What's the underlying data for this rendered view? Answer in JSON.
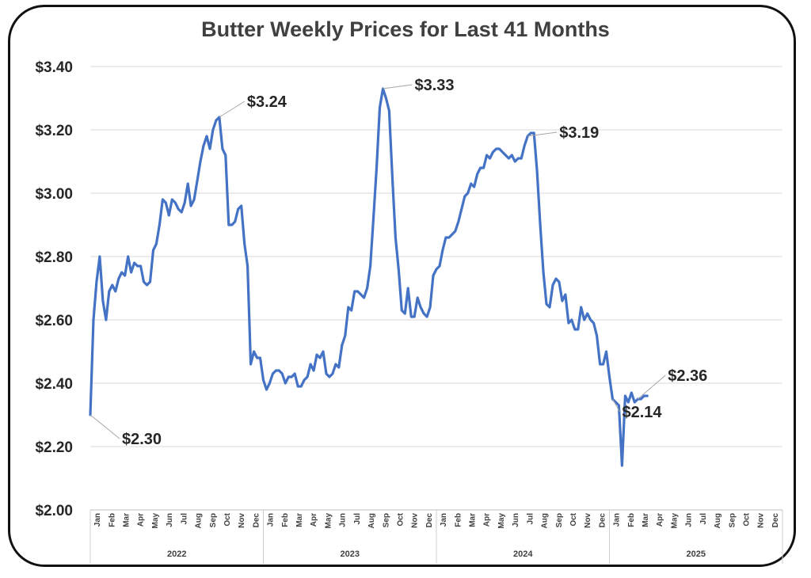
{
  "chart_data": {
    "type": "line",
    "title": "Butter Weekly Prices for Last 41 Months",
    "xlabel": "",
    "ylabel": "",
    "ylim": [
      2.0,
      3.4
    ],
    "yticks": [
      "$2.00",
      "$2.20",
      "$2.40",
      "$2.60",
      "$2.80",
      "$3.00",
      "$3.20",
      "$3.40"
    ],
    "ytick_values": [
      2.0,
      2.2,
      2.4,
      2.6,
      2.8,
      3.0,
      3.2,
      3.4
    ],
    "grid": true,
    "line_color": "#4472C4",
    "years": [
      "2022",
      "2023",
      "2024",
      "2025"
    ],
    "months": [
      "Jan",
      "Feb",
      "Mar",
      "Apr",
      "May",
      "Jun",
      "Jul",
      "Aug",
      "Sep",
      "Oct",
      "Nov",
      "Dec"
    ],
    "months_2025": [
      "Jan",
      "Feb",
      "Mar",
      "Apr",
      "May",
      "Jun",
      "Jul",
      "Aug",
      "Sep",
      "Oct",
      "Nov",
      "Dec"
    ],
    "series": [
      {
        "x_weeks": [
          0,
          1,
          2,
          3,
          4,
          5,
          6,
          7,
          8,
          9,
          10,
          11,
          12,
          13,
          14,
          15,
          16,
          17,
          18,
          19,
          20,
          21,
          22,
          23,
          24,
          25,
          26,
          27,
          28,
          29,
          30,
          31,
          32,
          33,
          34,
          35,
          36,
          37,
          38,
          39,
          40,
          41,
          42,
          43,
          44,
          45,
          46,
          47,
          48,
          49,
          50,
          51,
          52,
          53,
          54,
          55,
          56,
          57,
          58,
          59,
          60,
          61,
          62,
          63,
          64,
          65,
          66,
          67,
          68,
          69,
          70,
          71,
          72,
          73,
          74,
          75,
          76,
          77,
          78,
          79,
          80,
          81,
          82,
          83,
          84,
          85,
          86,
          87,
          88,
          89,
          90,
          91,
          92,
          93,
          94,
          95,
          96,
          97,
          98,
          99,
          100,
          101,
          102,
          103,
          104,
          105,
          106,
          107,
          108,
          109,
          110,
          111,
          112,
          113,
          114,
          115,
          116,
          117,
          118,
          119,
          120,
          121,
          122,
          123,
          124,
          125,
          126,
          127,
          128,
          129,
          130,
          131,
          132,
          133,
          134,
          135,
          136,
          137,
          138,
          139,
          140,
          141,
          142,
          143,
          144,
          145,
          146,
          147,
          148,
          149,
          150,
          151,
          152,
          153,
          154,
          155,
          156,
          157,
          158,
          159,
          160,
          161,
          162,
          163,
          164,
          165,
          166,
          167,
          168,
          169,
          170,
          171,
          172,
          173,
          174,
          175,
          176,
          177
        ],
        "values": [
          2.3,
          2.6,
          2.72,
          2.8,
          2.66,
          2.6,
          2.69,
          2.71,
          2.69,
          2.73,
          2.75,
          2.74,
          2.8,
          2.75,
          2.78,
          2.77,
          2.77,
          2.72,
          2.71,
          2.72,
          2.82,
          2.84,
          2.9,
          2.98,
          2.97,
          2.93,
          2.98,
          2.97,
          2.95,
          2.94,
          2.97,
          3.03,
          2.96,
          2.98,
          3.04,
          3.1,
          3.15,
          3.18,
          3.14,
          3.2,
          3.23,
          3.24,
          3.14,
          3.12,
          2.9,
          2.9,
          2.91,
          2.95,
          2.96,
          2.84,
          2.77,
          2.46,
          2.5,
          2.48,
          2.48,
          2.41,
          2.38,
          2.4,
          2.43,
          2.44,
          2.44,
          2.43,
          2.4,
          2.42,
          2.42,
          2.43,
          2.39,
          2.39,
          2.41,
          2.42,
          2.46,
          2.44,
          2.49,
          2.48,
          2.5,
          2.43,
          2.42,
          2.43,
          2.46,
          2.45,
          2.52,
          2.55,
          2.64,
          2.63,
          2.69,
          2.69,
          2.68,
          2.67,
          2.7,
          2.77,
          2.92,
          3.08,
          3.27,
          3.33,
          3.3,
          3.26,
          3.05,
          2.86,
          2.76,
          2.63,
          2.62,
          2.7,
          2.61,
          2.61,
          2.67,
          2.64,
          2.62,
          2.61,
          2.64,
          2.74,
          2.76,
          2.77,
          2.82,
          2.86,
          2.86,
          2.87,
          2.88,
          2.91,
          2.95,
          2.99,
          3.0,
          3.03,
          3.02,
          3.06,
          3.08,
          3.08,
          3.12,
          3.11,
          3.13,
          3.14,
          3.14,
          3.13,
          3.12,
          3.11,
          3.12,
          3.1,
          3.11,
          3.11,
          3.15,
          3.18,
          3.19,
          3.19,
          3.07,
          2.9,
          2.75,
          2.65,
          2.64,
          2.71,
          2.73,
          2.72,
          2.66,
          2.68,
          2.59,
          2.6,
          2.57,
          2.57,
          2.64,
          2.6,
          2.62,
          2.6,
          2.59,
          2.55,
          2.46,
          2.46,
          2.5,
          2.42,
          2.35,
          2.34,
          2.33,
          2.14,
          2.36,
          2.34,
          2.37,
          2.34,
          2.35,
          2.35,
          2.36,
          2.36
        ]
      }
    ],
    "annotations": [
      {
        "label": "$2.30",
        "value": 2.3
      },
      {
        "label": "$3.24",
        "value": 3.24
      },
      {
        "label": "$3.33",
        "value": 3.33
      },
      {
        "label": "$3.19",
        "value": 3.19
      },
      {
        "label": "$2.14",
        "value": 2.14
      },
      {
        "label": "$2.36",
        "value": 2.36
      }
    ]
  }
}
